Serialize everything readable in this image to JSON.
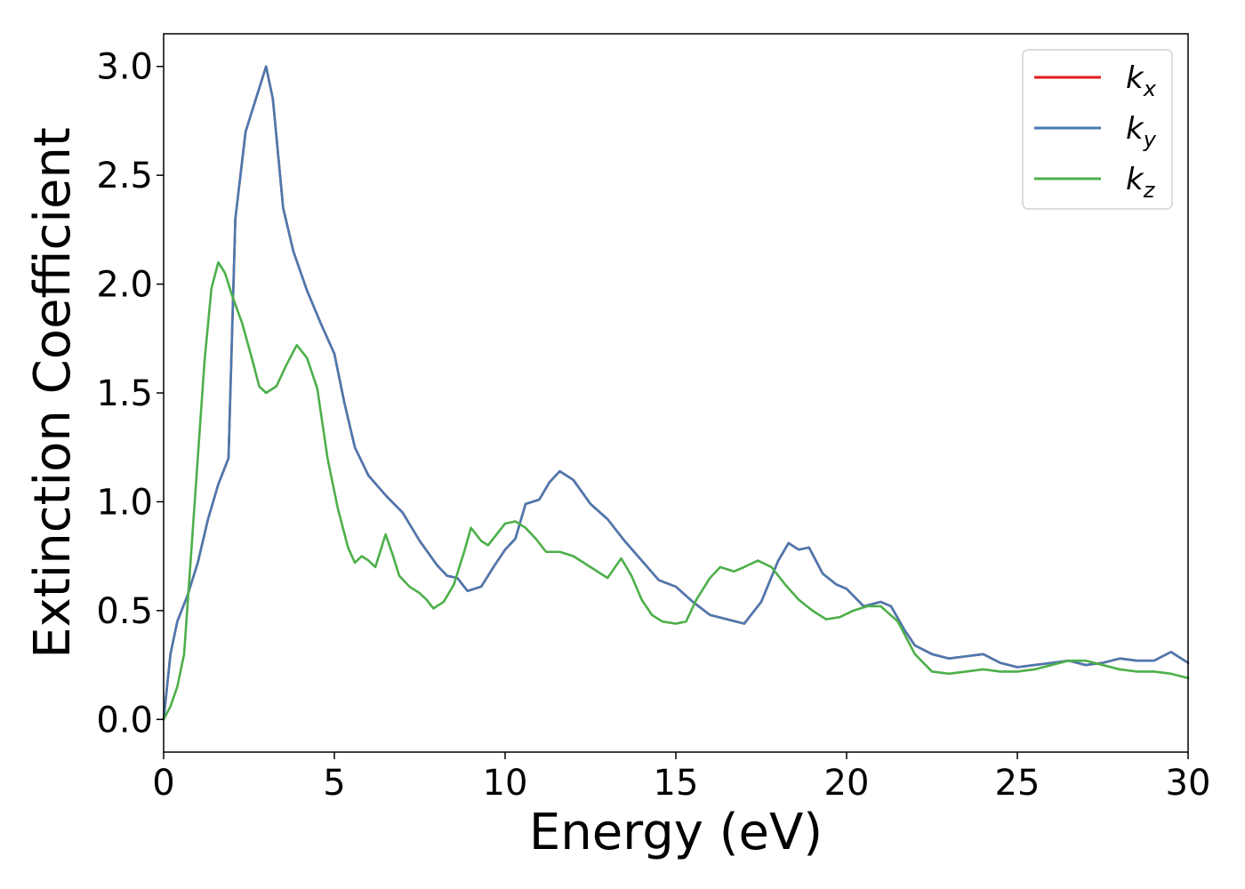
{
  "chart_data": {
    "type": "line",
    "title": "",
    "xlabel": "Energy (eV)",
    "ylabel": "Extinction Coefficient",
    "xlim": [
      0,
      30
    ],
    "ylim": [
      -0.15,
      3.15
    ],
    "xticks": [
      0,
      5,
      10,
      15,
      20,
      25,
      30
    ],
    "yticks": [
      0.0,
      0.5,
      1.0,
      1.5,
      2.0,
      2.5,
      3.0
    ],
    "xtick_labels": [
      "0",
      "5",
      "10",
      "15",
      "20",
      "25",
      "30"
    ],
    "ytick_labels": [
      "0.0",
      "0.5",
      "1.0",
      "1.5",
      "2.0",
      "2.5",
      "3.0"
    ],
    "grid": false,
    "legend_position": "top-right",
    "series": [
      {
        "name": "k_x",
        "legend_main": "k",
        "legend_sub": "x",
        "color": "#e41a1c",
        "points": [
          [
            0,
            0.0
          ],
          [
            0.2,
            0.3
          ],
          [
            0.4,
            0.45
          ],
          [
            0.7,
            0.57
          ],
          [
            1.0,
            0.72
          ],
          [
            1.3,
            0.92
          ],
          [
            1.6,
            1.08
          ],
          [
            1.9,
            1.2
          ],
          [
            2.1,
            2.3
          ],
          [
            2.4,
            2.7
          ],
          [
            2.7,
            2.85
          ],
          [
            3.0,
            3.0
          ],
          [
            3.2,
            2.85
          ],
          [
            3.5,
            2.35
          ],
          [
            3.8,
            2.15
          ],
          [
            4.2,
            1.97
          ],
          [
            4.6,
            1.82
          ],
          [
            5.0,
            1.68
          ],
          [
            5.3,
            1.45
          ],
          [
            5.6,
            1.25
          ],
          [
            6.0,
            1.12
          ],
          [
            6.5,
            1.03
          ],
          [
            7.0,
            0.95
          ],
          [
            7.5,
            0.82
          ],
          [
            8.0,
            0.71
          ],
          [
            8.3,
            0.66
          ],
          [
            8.6,
            0.65
          ],
          [
            8.9,
            0.59
          ],
          [
            9.3,
            0.61
          ],
          [
            9.7,
            0.71
          ],
          [
            10.0,
            0.78
          ],
          [
            10.3,
            0.83
          ],
          [
            10.6,
            0.99
          ],
          [
            11.0,
            1.01
          ],
          [
            11.3,
            1.09
          ],
          [
            11.6,
            1.14
          ],
          [
            12.0,
            1.1
          ],
          [
            12.5,
            0.99
          ],
          [
            13.0,
            0.92
          ],
          [
            13.5,
            0.82
          ],
          [
            14.0,
            0.73
          ],
          [
            14.5,
            0.64
          ],
          [
            15.0,
            0.61
          ],
          [
            15.5,
            0.54
          ],
          [
            16.0,
            0.48
          ],
          [
            16.5,
            0.46
          ],
          [
            17.0,
            0.44
          ],
          [
            17.5,
            0.54
          ],
          [
            18.0,
            0.73
          ],
          [
            18.3,
            0.81
          ],
          [
            18.6,
            0.78
          ],
          [
            18.9,
            0.79
          ],
          [
            19.3,
            0.67
          ],
          [
            19.7,
            0.62
          ],
          [
            20.0,
            0.6
          ],
          [
            20.5,
            0.52
          ],
          [
            21.0,
            0.54
          ],
          [
            21.3,
            0.52
          ],
          [
            21.7,
            0.41
          ],
          [
            22.0,
            0.34
          ],
          [
            22.5,
            0.3
          ],
          [
            23.0,
            0.28
          ],
          [
            23.5,
            0.29
          ],
          [
            24.0,
            0.3
          ],
          [
            24.5,
            0.26
          ],
          [
            25.0,
            0.24
          ],
          [
            25.5,
            0.25
          ],
          [
            26.0,
            0.26
          ],
          [
            26.5,
            0.27
          ],
          [
            27.0,
            0.25
          ],
          [
            27.5,
            0.26
          ],
          [
            28.0,
            0.28
          ],
          [
            28.5,
            0.27
          ],
          [
            29.0,
            0.27
          ],
          [
            29.5,
            0.31
          ],
          [
            30.0,
            0.26
          ]
        ]
      },
      {
        "name": "k_y",
        "legend_main": "k",
        "legend_sub": "y",
        "color": "#4a79b0",
        "points": [
          [
            0,
            0.0
          ],
          [
            0.2,
            0.3
          ],
          [
            0.4,
            0.45
          ],
          [
            0.7,
            0.57
          ],
          [
            1.0,
            0.72
          ],
          [
            1.3,
            0.92
          ],
          [
            1.6,
            1.08
          ],
          [
            1.9,
            1.2
          ],
          [
            2.1,
            2.3
          ],
          [
            2.4,
            2.7
          ],
          [
            2.7,
            2.85
          ],
          [
            3.0,
            3.0
          ],
          [
            3.2,
            2.85
          ],
          [
            3.5,
            2.35
          ],
          [
            3.8,
            2.15
          ],
          [
            4.2,
            1.97
          ],
          [
            4.6,
            1.82
          ],
          [
            5.0,
            1.68
          ],
          [
            5.3,
            1.45
          ],
          [
            5.6,
            1.25
          ],
          [
            6.0,
            1.12
          ],
          [
            6.5,
            1.03
          ],
          [
            7.0,
            0.95
          ],
          [
            7.5,
            0.82
          ],
          [
            8.0,
            0.71
          ],
          [
            8.3,
            0.66
          ],
          [
            8.6,
            0.65
          ],
          [
            8.9,
            0.59
          ],
          [
            9.3,
            0.61
          ],
          [
            9.7,
            0.71
          ],
          [
            10.0,
            0.78
          ],
          [
            10.3,
            0.83
          ],
          [
            10.6,
            0.99
          ],
          [
            11.0,
            1.01
          ],
          [
            11.3,
            1.09
          ],
          [
            11.6,
            1.14
          ],
          [
            12.0,
            1.1
          ],
          [
            12.5,
            0.99
          ],
          [
            13.0,
            0.92
          ],
          [
            13.5,
            0.82
          ],
          [
            14.0,
            0.73
          ],
          [
            14.5,
            0.64
          ],
          [
            15.0,
            0.61
          ],
          [
            15.5,
            0.54
          ],
          [
            16.0,
            0.48
          ],
          [
            16.5,
            0.46
          ],
          [
            17.0,
            0.44
          ],
          [
            17.5,
            0.54
          ],
          [
            18.0,
            0.73
          ],
          [
            18.3,
            0.81
          ],
          [
            18.6,
            0.78
          ],
          [
            18.9,
            0.79
          ],
          [
            19.3,
            0.67
          ],
          [
            19.7,
            0.62
          ],
          [
            20.0,
            0.6
          ],
          [
            20.5,
            0.52
          ],
          [
            21.0,
            0.54
          ],
          [
            21.3,
            0.52
          ],
          [
            21.7,
            0.41
          ],
          [
            22.0,
            0.34
          ],
          [
            22.5,
            0.3
          ],
          [
            23.0,
            0.28
          ],
          [
            23.5,
            0.29
          ],
          [
            24.0,
            0.3
          ],
          [
            24.5,
            0.26
          ],
          [
            25.0,
            0.24
          ],
          [
            25.5,
            0.25
          ],
          [
            26.0,
            0.26
          ],
          [
            26.5,
            0.27
          ],
          [
            27.0,
            0.25
          ],
          [
            27.5,
            0.26
          ],
          [
            28.0,
            0.28
          ],
          [
            28.5,
            0.27
          ],
          [
            29.0,
            0.27
          ],
          [
            29.5,
            0.31
          ],
          [
            30.0,
            0.26
          ]
        ]
      },
      {
        "name": "k_z",
        "legend_main": "k",
        "legend_sub": "z",
        "color": "#4daf4a",
        "points": [
          [
            0,
            0.0
          ],
          [
            0.2,
            0.06
          ],
          [
            0.4,
            0.15
          ],
          [
            0.6,
            0.3
          ],
          [
            0.8,
            0.75
          ],
          [
            1.0,
            1.2
          ],
          [
            1.2,
            1.65
          ],
          [
            1.4,
            1.98
          ],
          [
            1.6,
            2.1
          ],
          [
            1.8,
            2.05
          ],
          [
            2.0,
            1.95
          ],
          [
            2.3,
            1.82
          ],
          [
            2.6,
            1.65
          ],
          [
            2.8,
            1.53
          ],
          [
            3.0,
            1.5
          ],
          [
            3.3,
            1.53
          ],
          [
            3.6,
            1.63
          ],
          [
            3.9,
            1.72
          ],
          [
            4.2,
            1.66
          ],
          [
            4.5,
            1.52
          ],
          [
            4.8,
            1.2
          ],
          [
            5.1,
            0.97
          ],
          [
            5.4,
            0.79
          ],
          [
            5.6,
            0.72
          ],
          [
            5.8,
            0.75
          ],
          [
            6.0,
            0.73
          ],
          [
            6.2,
            0.7
          ],
          [
            6.4,
            0.8
          ],
          [
            6.5,
            0.85
          ],
          [
            6.7,
            0.76
          ],
          [
            6.9,
            0.66
          ],
          [
            7.2,
            0.61
          ],
          [
            7.5,
            0.58
          ],
          [
            7.7,
            0.55
          ],
          [
            7.9,
            0.51
          ],
          [
            8.2,
            0.54
          ],
          [
            8.5,
            0.62
          ],
          [
            8.8,
            0.77
          ],
          [
            9.0,
            0.88
          ],
          [
            9.3,
            0.82
          ],
          [
            9.5,
            0.8
          ],
          [
            9.8,
            0.86
          ],
          [
            10.0,
            0.9
          ],
          [
            10.3,
            0.91
          ],
          [
            10.6,
            0.88
          ],
          [
            10.9,
            0.83
          ],
          [
            11.2,
            0.77
          ],
          [
            11.6,
            0.77
          ],
          [
            12.0,
            0.75
          ],
          [
            12.5,
            0.7
          ],
          [
            13.0,
            0.65
          ],
          [
            13.4,
            0.74
          ],
          [
            13.7,
            0.66
          ],
          [
            14.0,
            0.55
          ],
          [
            14.3,
            0.48
          ],
          [
            14.6,
            0.45
          ],
          [
            15.0,
            0.44
          ],
          [
            15.3,
            0.45
          ],
          [
            15.6,
            0.55
          ],
          [
            16.0,
            0.65
          ],
          [
            16.3,
            0.7
          ],
          [
            16.7,
            0.68
          ],
          [
            17.0,
            0.7
          ],
          [
            17.4,
            0.73
          ],
          [
            17.8,
            0.7
          ],
          [
            18.2,
            0.62
          ],
          [
            18.6,
            0.55
          ],
          [
            19.0,
            0.5
          ],
          [
            19.4,
            0.46
          ],
          [
            19.8,
            0.47
          ],
          [
            20.2,
            0.5
          ],
          [
            20.6,
            0.52
          ],
          [
            21.0,
            0.52
          ],
          [
            21.5,
            0.45
          ],
          [
            22.0,
            0.3
          ],
          [
            22.5,
            0.22
          ],
          [
            23.0,
            0.21
          ],
          [
            23.5,
            0.22
          ],
          [
            24.0,
            0.23
          ],
          [
            24.5,
            0.22
          ],
          [
            25.0,
            0.22
          ],
          [
            25.5,
            0.23
          ],
          [
            26.0,
            0.25
          ],
          [
            26.5,
            0.27
          ],
          [
            27.0,
            0.27
          ],
          [
            27.5,
            0.25
          ],
          [
            28.0,
            0.23
          ],
          [
            28.5,
            0.22
          ],
          [
            29.0,
            0.22
          ],
          [
            29.5,
            0.21
          ],
          [
            30.0,
            0.19
          ]
        ]
      }
    ]
  }
}
